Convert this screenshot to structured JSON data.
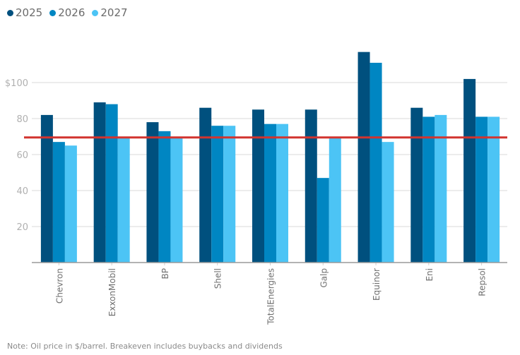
{
  "chart_data": {
    "type": "bar",
    "title": "",
    "xlabel": "",
    "ylabel": "",
    "ylim": [
      0,
      120
    ],
    "yticks": [
      20,
      40,
      60,
      80,
      100
    ],
    "ytick_labels": [
      "20",
      "40",
      "60",
      "80",
      "$100"
    ],
    "grid": true,
    "legend_position": "top-left",
    "categories": [
      "Chevron",
      "ExxonMobil",
      "BP",
      "Shell",
      "TotalEnergies",
      "Galp",
      "Equinor",
      "Eni",
      "Repsol"
    ],
    "series": [
      {
        "name": "2025",
        "color": "#00507e",
        "values": [
          82,
          89,
          78,
          86,
          85,
          85,
          117,
          86,
          102
        ]
      },
      {
        "name": "2026",
        "color": "#0086c2",
        "values": [
          67,
          88,
          73,
          76,
          77,
          47,
          111,
          81,
          81
        ]
      },
      {
        "name": "2027",
        "color": "#4cc4f5",
        "values": [
          65,
          69,
          69,
          76,
          77,
          69,
          67,
          82,
          81
        ]
      }
    ],
    "reference_line": {
      "value": 69.5,
      "color": "#d2342f"
    }
  },
  "note": "Note: Oil price in $/barrel. Breakeven includes buybacks and dividends"
}
